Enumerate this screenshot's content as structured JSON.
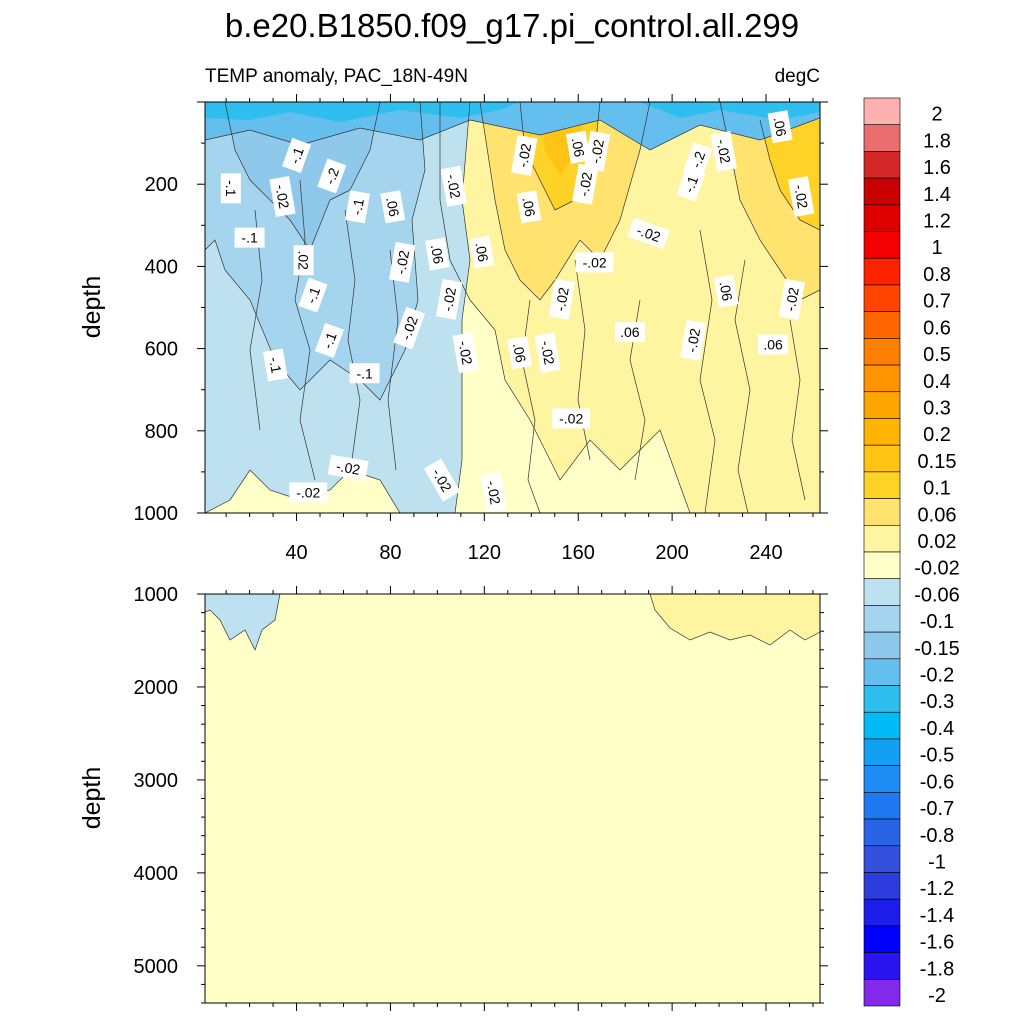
{
  "chart_data": {
    "type": "heatmap",
    "title": "b.e20.B1850.f09_g17.pi_control.all.299",
    "subtitle_left": "TEMP anomaly, PAC_18N-49N",
    "subtitle_right": "degC",
    "colorbar": {
      "levels": [
        "2",
        "1.8",
        "1.6",
        "1.4",
        "1.2",
        "1",
        "0.8",
        "0.7",
        "0.6",
        "0.5",
        "0.4",
        "0.3",
        "0.2",
        "0.15",
        "0.1",
        "0.06",
        "0.02",
        "-0.02",
        "-0.06",
        "-0.1",
        "-0.15",
        "-0.2",
        "-0.3",
        "-0.4",
        "-0.5",
        "-0.6",
        "-0.7",
        "-0.8",
        "-1",
        "-1.2",
        "-1.4",
        "-1.6",
        "-1.8",
        "-2"
      ],
      "colors": [
        "#ffb0b0",
        "#ea6e6e",
        "#d42828",
        "#c80000",
        "#de0000",
        "#f50000",
        "#ff2200",
        "#ff4400",
        "#ff6600",
        "#ff7f00",
        "#ff9400",
        "#ffa500",
        "#ffb400",
        "#ffc314",
        "#ffd228",
        "#ffe36e",
        "#fff4a0",
        "#ffffc8",
        "#bde1ef",
        "#a5d4ee",
        "#8ec9ec",
        "#64bfee",
        "#2ebfee",
        "#00bbf5",
        "#12a0f5",
        "#1e8cf5",
        "#1e78f0",
        "#2864e6",
        "#3250dc",
        "#2d3cdc",
        "#1e1eeb",
        "#0000ff",
        "#2a14f0",
        "#8229eb"
      ]
    },
    "panels": [
      {
        "name": "upper",
        "xlim": [
          1,
          263
        ],
        "ylim": [
          0,
          1000
        ],
        "x_ticks": [
          "40",
          "80",
          "120",
          "160",
          "200",
          "240"
        ],
        "y_ticks": [
          "200",
          "400",
          "600",
          "800",
          "1000"
        ],
        "ylabel": "depth",
        "contour_labels": [
          {
            "text": "-.1",
            "x": 12,
            "y": 210,
            "rot": 90
          },
          {
            "text": "-.1",
            "x": 20,
            "y": 330,
            "rot": 0
          },
          {
            "text": "-.1",
            "x": 40,
            "y": 130,
            "rot": -70
          },
          {
            "text": "-.02",
            "x": 34,
            "y": 230,
            "rot": 80
          },
          {
            "text": "-.2",
            "x": 55,
            "y": 180,
            "rot": -70
          },
          {
            "text": ".02",
            "x": 43,
            "y": 385,
            "rot": 90
          },
          {
            "text": "-.1",
            "x": 47,
            "y": 470,
            "rot": -70
          },
          {
            "text": "-.1",
            "x": 31,
            "y": 640,
            "rot": 80
          },
          {
            "text": "-.1",
            "x": 54,
            "y": 580,
            "rot": -70
          },
          {
            "text": "-.1",
            "x": 69,
            "y": 660,
            "rot": 0
          },
          {
            "text": "-.1",
            "x": 66,
            "y": 255,
            "rot": -80
          },
          {
            "text": ".06",
            "x": 81,
            "y": 255,
            "rot": 80
          },
          {
            "text": "-.02",
            "x": 85,
            "y": 390,
            "rot": -80
          },
          {
            "text": "-.02",
            "x": 88,
            "y": 550,
            "rot": -70
          },
          {
            "text": ".06",
            "x": 100,
            "y": 370,
            "rot": 80
          },
          {
            "text": "-.02",
            "x": 107,
            "y": 205,
            "rot": 80
          },
          {
            "text": "-.02",
            "x": 105,
            "y": 480,
            "rot": -80
          },
          {
            "text": ".06",
            "x": 119,
            "y": 365,
            "rot": 80
          },
          {
            "text": "-.02",
            "x": 112,
            "y": 610,
            "rot": 80
          },
          {
            "text": ".06",
            "x": 135,
            "y": 610,
            "rot": 80
          },
          {
            "text": "-.02",
            "x": 137,
            "y": 130,
            "rot": -80
          },
          {
            "text": ".06",
            "x": 139,
            "y": 255,
            "rot": 80
          },
          {
            "text": ".06",
            "x": 160,
            "y": 110,
            "rot": 80
          },
          {
            "text": "-.02",
            "x": 168,
            "y": 120,
            "rot": -80
          },
          {
            "text": "-.02",
            "x": 163,
            "y": 200,
            "rot": -80
          },
          {
            "text": "-.02",
            "x": 153,
            "y": 480,
            "rot": -80
          },
          {
            "text": "-.02",
            "x": 147,
            "y": 610,
            "rot": 80
          },
          {
            "text": "-.02",
            "x": 157,
            "y": 770,
            "rot": 0
          },
          {
            "text": "-.02",
            "x": 167,
            "y": 390,
            "rot": 0
          },
          {
            "text": "-.02",
            "x": 190,
            "y": 320,
            "rot": 20
          },
          {
            "text": ".06",
            "x": 182,
            "y": 560,
            "rot": 0
          },
          {
            "text": "-.2",
            "x": 211,
            "y": 140,
            "rot": -70
          },
          {
            "text": "-.02",
            "x": 222,
            "y": 120,
            "rot": 80
          },
          {
            "text": "-.1",
            "x": 208,
            "y": 200,
            "rot": -70
          },
          {
            "text": "-.02",
            "x": 209,
            "y": 580,
            "rot": -80
          },
          {
            "text": ".06",
            "x": 223,
            "y": 460,
            "rot": 80
          },
          {
            "text": ".06",
            "x": 246,
            "y": 60,
            "rot": 80
          },
          {
            "text": "-.02",
            "x": 255,
            "y": 230,
            "rot": 80
          },
          {
            "text": "-.02",
            "x": 251,
            "y": 480,
            "rot": -80
          },
          {
            "text": ".06",
            "x": 243,
            "y": 590,
            "rot": 0
          },
          {
            "text": "-.02",
            "x": 62,
            "y": 890,
            "rot": 10
          },
          {
            "text": "-.02",
            "x": 45,
            "y": 950,
            "rot": 0
          },
          {
            "text": "-.02",
            "x": 102,
            "y": 920,
            "rot": 60
          },
          {
            "text": "-.02",
            "x": 124,
            "y": 950,
            "rot": 80
          }
        ]
      },
      {
        "name": "lower",
        "xlim": [
          1,
          263
        ],
        "ylim": [
          1000,
          5400
        ],
        "y_ticks": [
          "1000",
          "2000",
          "3000",
          "4000",
          "5000"
        ],
        "ylabel": "depth"
      }
    ]
  }
}
